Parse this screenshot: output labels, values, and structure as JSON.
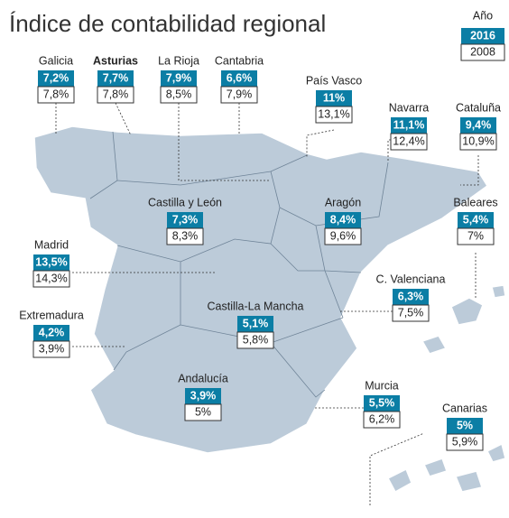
{
  "title": "Índice de contabilidad regional",
  "legend": {
    "label": "Año",
    "years": [
      "2016",
      "2008"
    ]
  },
  "regions": [
    {
      "name": "Galicia",
      "v2016": "7,2%",
      "v2008": "7,8%"
    },
    {
      "name": "Asturias",
      "v2016": "7,7%",
      "v2008": "7,8%"
    },
    {
      "name": "La Rioja",
      "v2016": "7,9%",
      "v2008": "8,5%"
    },
    {
      "name": "Cantabria",
      "v2016": "6,6%",
      "v2008": "7,9%"
    },
    {
      "name": "País Vasco",
      "v2016": "11%",
      "v2008": "13,1%"
    },
    {
      "name": "Navarra",
      "v2016": "11,1%",
      "v2008": "12,4%"
    },
    {
      "name": "Cataluña",
      "v2016": "9,4%",
      "v2008": "10,9%"
    },
    {
      "name": "Castilla y León",
      "v2016": "7,3%",
      "v2008": "8,3%"
    },
    {
      "name": "Aragón",
      "v2016": "8,4%",
      "v2008": "9,6%"
    },
    {
      "name": "Baleares",
      "v2016": "5,4%",
      "v2008": "7%"
    },
    {
      "name": "Madrid",
      "v2016": "13,5%",
      "v2008": "14,3%"
    },
    {
      "name": "C. Valenciana",
      "v2016": "6,3%",
      "v2008": "7,5%"
    },
    {
      "name": "Extremadura",
      "v2016": "4,2%",
      "v2008": "3,9%"
    },
    {
      "name": "Castilla-La Mancha",
      "v2016": "5,1%",
      "v2008": "5,8%"
    },
    {
      "name": "Andalucía",
      "v2016": "3,9%",
      "v2008": "5%"
    },
    {
      "name": "Murcia",
      "v2016": "5,5%",
      "v2008": "6,2%"
    },
    {
      "name": "Canarias",
      "v2016": "5%",
      "v2008": "5,9%"
    }
  ]
}
